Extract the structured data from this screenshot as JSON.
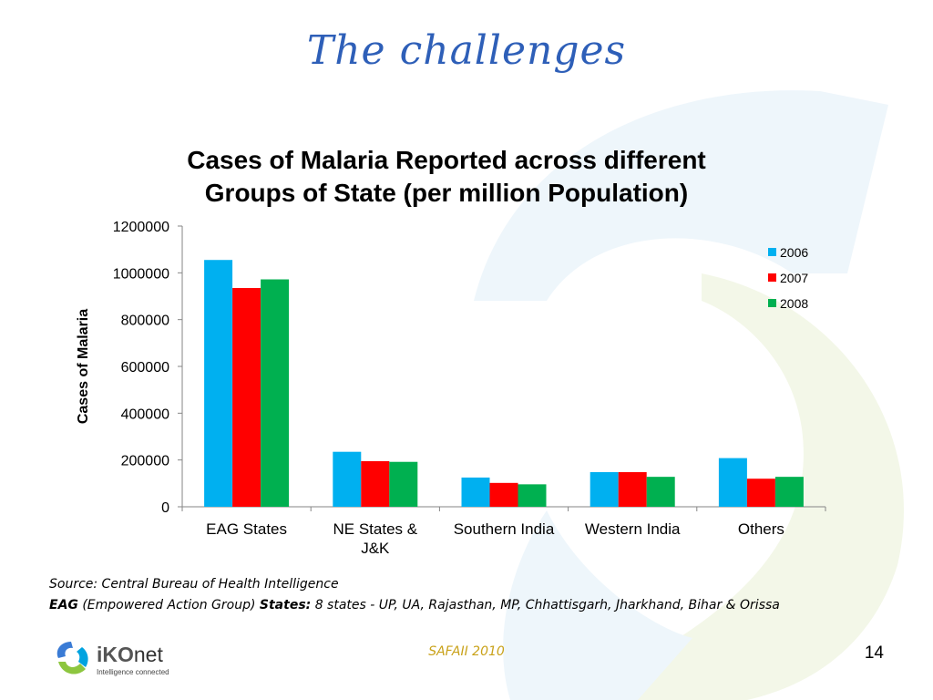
{
  "slide": {
    "title": "The challenges",
    "footer_center": "SAFAII 2010",
    "page_number": "14"
  },
  "source": {
    "line1": "Source: Central Bureau of Health Intelligence",
    "eag_label": "EAG",
    "eag_expansion": " (Empowered Action Group) ",
    "states_label": "States:",
    "states_text": " 8 states - UP, UA, Rajasthan, MP, Chhattisgarh, Jharkhand, Bihar & Orissa"
  },
  "logo": {
    "name_bold": "iKO",
    "name_rest": "net",
    "tagline": "Intelligence connected"
  },
  "colors": {
    "title": "#2e5fb8",
    "series": [
      "#00b0f0",
      "#ff0000",
      "#00b050"
    ],
    "footer": "#c9a21a"
  },
  "chart_data": {
    "type": "bar",
    "title": "Cases of Malaria Reported across different Groups of State (per million Population)",
    "title_lines": [
      "Cases of Malaria Reported across different",
      "Groups of State (per million Population)"
    ],
    "xlabel": "",
    "ylabel": "Cases of Malaria",
    "categories": [
      "EAG States",
      "NE States & J&K",
      "Southern India",
      "Western India",
      "Others"
    ],
    "category_lines": [
      [
        "EAG States"
      ],
      [
        "NE States &",
        "J&K"
      ],
      [
        "Southern India"
      ],
      [
        "Western India"
      ],
      [
        "Others"
      ]
    ],
    "series": [
      {
        "name": "2006",
        "values": [
          1055000,
          235000,
          125000,
          148000,
          208000
        ]
      },
      {
        "name": "2007",
        "values": [
          935000,
          195000,
          102000,
          148000,
          120000
        ]
      },
      {
        "name": "2008",
        "values": [
          972000,
          192000,
          96000,
          128000,
          128000
        ]
      }
    ],
    "ylim": [
      0,
      1200000
    ],
    "yticks": [
      0,
      200000,
      400000,
      600000,
      800000,
      1000000,
      1200000
    ],
    "grid": false,
    "legend": "top-right"
  }
}
